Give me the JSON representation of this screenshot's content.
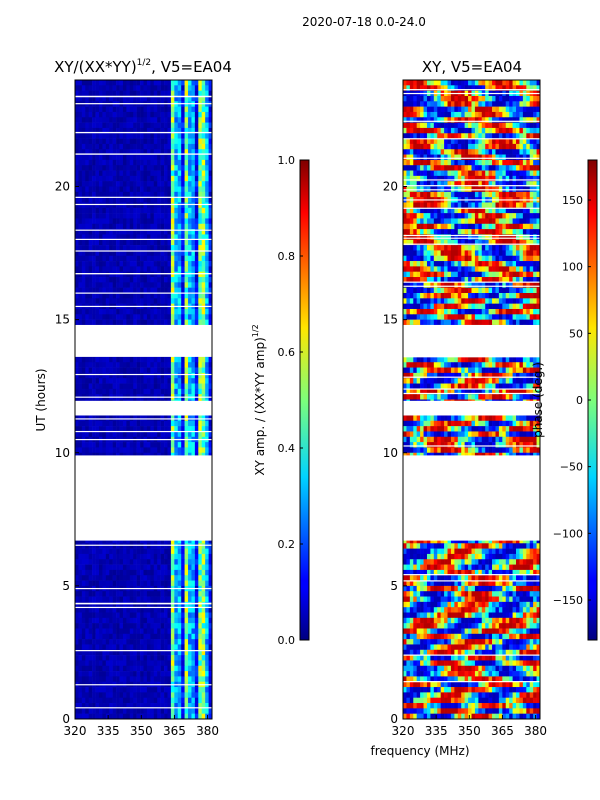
{
  "figure": {
    "suptitle": "2020-07-18 0.0-24.0",
    "shared_xlabel": "frequency (MHz)"
  },
  "chart_data": [
    {
      "type": "heatmap",
      "title_main": "XY/(XX*YY)",
      "title_exp": "1/2",
      "title_suffix": ", V5=EA04",
      "ylabel": "UT (hours)",
      "xlim": [
        320,
        382
      ],
      "ylim": [
        0,
        24
      ],
      "x_ticks": [
        320,
        335,
        350,
        365,
        380
      ],
      "y_ticks": [
        0,
        5,
        10,
        15,
        20
      ],
      "colormap": "jet",
      "data_gaps_hours": [
        [
          6.7,
          9.9
        ],
        [
          11.4,
          11.95
        ],
        [
          13.6,
          14.8
        ],
        [
          16.7,
          16.75
        ],
        [
          22.0,
          22.05
        ]
      ],
      "colorbar": {
        "label_main": "XY amp. / (XX*YY amp)",
        "label_exp": "1/2",
        "range": [
          0.0,
          1.0
        ],
        "ticks": [
          "0.0",
          "0.2",
          "0.4",
          "0.6",
          "0.8",
          "1.0"
        ]
      }
    },
    {
      "type": "heatmap",
      "title_main": "XY, V5=EA04",
      "ylabel": "",
      "xlim": [
        320,
        382
      ],
      "ylim": [
        0,
        24
      ],
      "x_ticks": [
        320,
        335,
        350,
        365,
        380
      ],
      "y_ticks": [
        0,
        5,
        10,
        15,
        20
      ],
      "colormap": "jet",
      "data_gaps_hours": [
        [
          6.7,
          9.9
        ],
        [
          11.4,
          11.95
        ],
        [
          13.6,
          14.8
        ]
      ],
      "colorbar": {
        "label_main": "phase (deg.)",
        "range": [
          -180,
          180
        ],
        "ticks": [
          "−150",
          "−100",
          "−50",
          "0",
          "50",
          "100",
          "150"
        ]
      }
    }
  ]
}
